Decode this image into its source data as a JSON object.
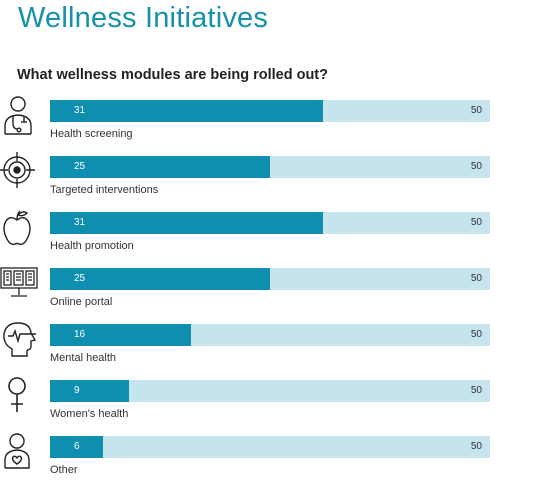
{
  "title": "Wellness Initiatives",
  "chart_data": {
    "type": "bar",
    "title": "What wellness modules are being rolled out?",
    "categories": [
      "Health screening",
      "Targeted interventions",
      "Health promotion",
      "Online portal",
      "Mental health",
      "Women's health",
      "Other"
    ],
    "values": [
      31,
      25,
      31,
      25,
      16,
      9,
      6
    ],
    "max_labels": [
      50,
      50,
      50,
      50,
      50,
      50,
      50
    ],
    "xlim": [
      0,
      50
    ],
    "orientation": "horizontal",
    "icons": [
      "doctor-stethoscope-icon",
      "crosshair-target-icon",
      "apple-icon",
      "computer-monitor-icon",
      "head-heartbeat-icon",
      "female-symbol-icon",
      "person-heart-icon"
    ],
    "colors": {
      "fill": "#0f8fb0",
      "track": "#c5e4ee",
      "title": "#1591a8"
    }
  }
}
